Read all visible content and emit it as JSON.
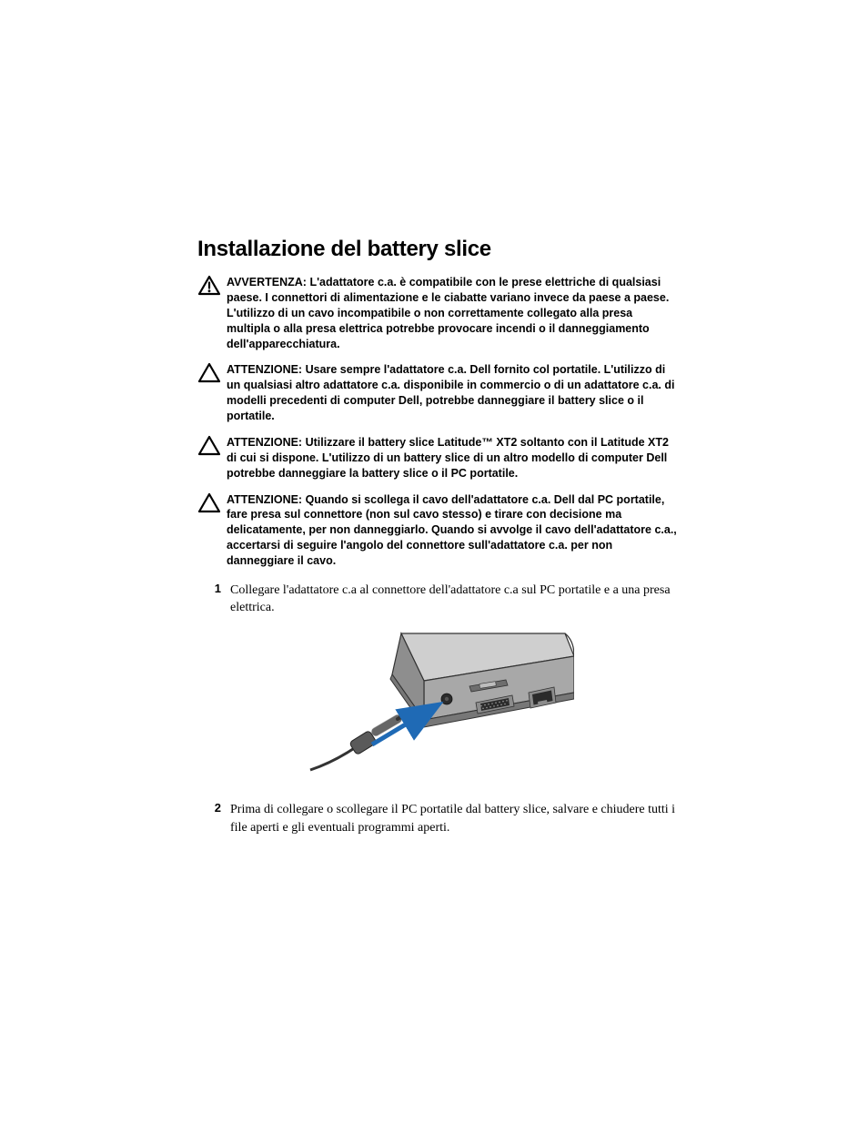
{
  "title": "Installazione del battery slice",
  "notices": [
    {
      "type": "warning",
      "label": "AVVERTENZA:",
      "text": "L'adattatore c.a. è compatibile con le prese elettriche di qualsiasi paese. I connettori di alimentazione e le ciabatte variano invece da paese a paese. L'utilizzo di un cavo incompatibile o non correttamente collegato alla presa multipla o alla presa elettrica potrebbe provocare incendi o il danneggiamento dell'apparecchiatura."
    },
    {
      "type": "caution",
      "label": "ATTENZIONE:",
      "text": "Usare sempre l'adattatore c.a. Dell fornito col portatile. L'utilizzo di un qualsiasi altro adattatore c.a. disponibile in commercio o di un adattatore c.a. di modelli precedenti di computer Dell, potrebbe danneggiare il battery slice o il portatile."
    },
    {
      "type": "caution",
      "label": "ATTENZIONE:",
      "text": "Utilizzare il battery slice Latitude™ XT2 soltanto con il Latitude XT2 di cui si dispone. L'utilizzo di un battery slice di un altro modello di computer Dell potrebbe danneggiare la battery slice o il PC portatile."
    },
    {
      "type": "caution",
      "label": "ATTENZIONE:",
      "text": "Quando si scollega il cavo dell'adattatore c.a. Dell dal PC portatile, fare presa sul connettore (non sul cavo stesso) e tirare con decisione ma delicatamente, per non danneggiarlo. Quando si avvolge il cavo dell'adattatore c.a., accertarsi di seguire l'angolo del connettore sull'adattatore c.a. per non danneggiare il cavo."
    }
  ],
  "steps": [
    {
      "num": "1",
      "text": "Collegare l'adattatore c.a al connettore dell'adattatore c.a sul PC portatile e a una presa elettrica."
    },
    {
      "num": "2",
      "text": "Prima di collegare o scollegare il PC portatile dal battery slice, salvare e chiudere tutti i file aperti e gli eventuali programmi aperti."
    }
  ],
  "colors": {
    "text": "#000000",
    "arrow": "#1f6ab5",
    "laptop_light": "#cfcfcf",
    "laptop_mid": "#a8a8a8",
    "laptop_dark": "#777777",
    "laptop_edge": "#333333",
    "port_dark": "#2b2b2b"
  }
}
